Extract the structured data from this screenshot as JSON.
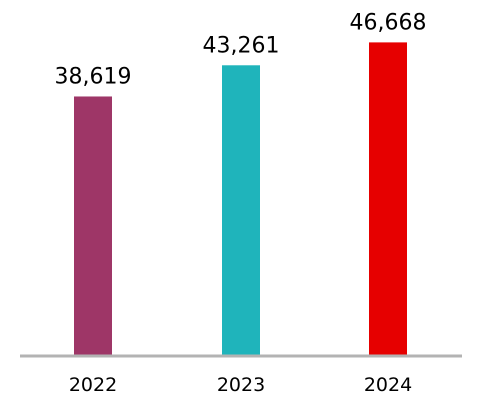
{
  "chart_data": {
    "type": "bar",
    "title": "",
    "xlabel": "",
    "ylabel": "",
    "categories": [
      "2022",
      "2023",
      "2024"
    ],
    "values": [
      38619,
      43261,
      46668
    ],
    "value_labels": [
      "38,619",
      "43,261",
      "46,668"
    ],
    "colors": [
      "#9e3667",
      "#1fb4bb",
      "#e60000"
    ],
    "ylim": [
      0,
      50000
    ],
    "grid": false,
    "legend": "none",
    "axis_color": "#b3b3b3"
  }
}
